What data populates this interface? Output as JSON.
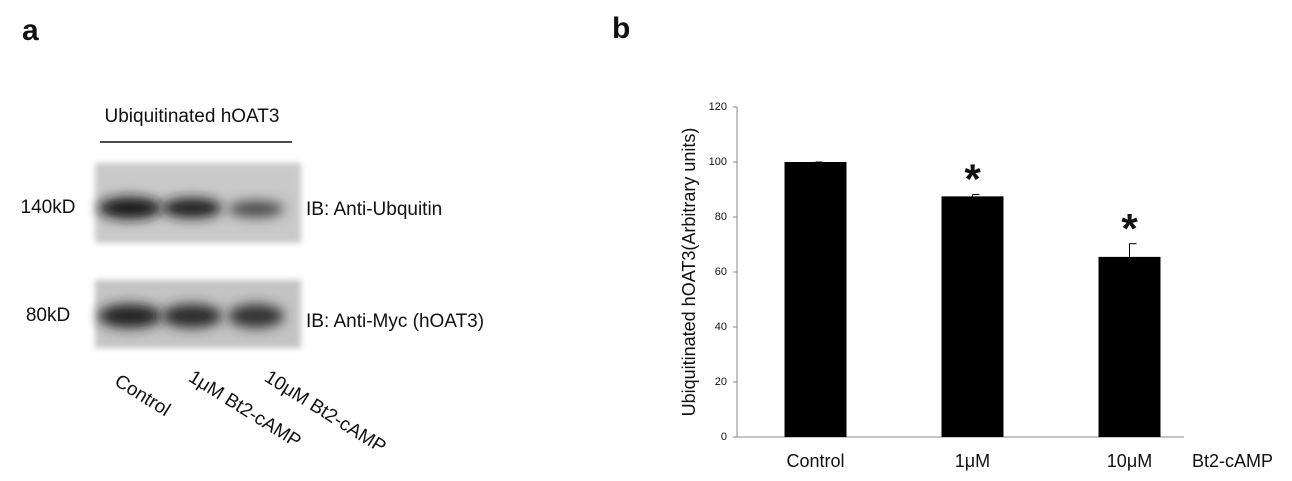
{
  "panel_labels": [
    "a",
    "b"
  ],
  "blot": {
    "title": "Ubiquitinated hOAT3",
    "rows": [
      {
        "size": "140kD",
        "antibody": "IB: Anti-Ubquitin"
      },
      {
        "size": "80kD",
        "antibody": "IB: Anti-Myc (hOAT3)"
      }
    ],
    "lanes": [
      "Control",
      "1μM Bt2-cAMP",
      "10μM Bt2-cAMP"
    ]
  },
  "chart_data": {
    "type": "bar",
    "ylabel": "Ubiquitinated hOAT3(Arbitrary units)",
    "xlabel": "Bt2-cAMP",
    "categories": [
      "Control",
      "1μM",
      "10μM"
    ],
    "values": [
      100,
      87.5,
      65.5
    ],
    "errors": [
      0,
      0.7,
      4.8
    ],
    "color": "#000000",
    "ylim": [
      0,
      120
    ],
    "yticks": [
      0,
      20,
      40,
      60,
      80,
      100,
      120
    ],
    "annotations": [
      {
        "text": "*",
        "category": "1μM"
      },
      {
        "text": "*",
        "category": "10μM"
      }
    ]
  }
}
